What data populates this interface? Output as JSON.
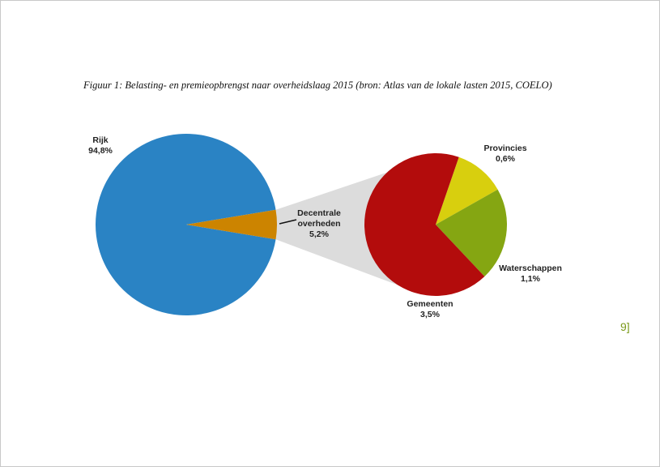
{
  "chart_data": [
    {
      "type": "pie",
      "title": "Figuur 1: Belasting- en premieopbrengst naar overheidslaag 2015 (bron: Atlas van de lokale lasten 2015, COELO)",
      "categories": [
        "Rijk",
        "Decentrale\noverheden"
      ],
      "values": [
        94.8,
        5.2
      ],
      "value_labels": [
        "94,8%",
        "5,2%"
      ],
      "colors": [
        "#2a83c4",
        "#cc8400"
      ]
    },
    {
      "type": "pie",
      "categories": [
        "Provincies",
        "Waterschappen",
        "Gemeenten"
      ],
      "values": [
        0.6,
        1.1,
        3.5
      ],
      "value_labels": [
        "0,6%",
        "1,1%",
        "3,5%"
      ],
      "colors": [
        "#d8cf0e",
        "#85a612",
        "#b30c0c"
      ]
    }
  ],
  "page_number": "9]"
}
